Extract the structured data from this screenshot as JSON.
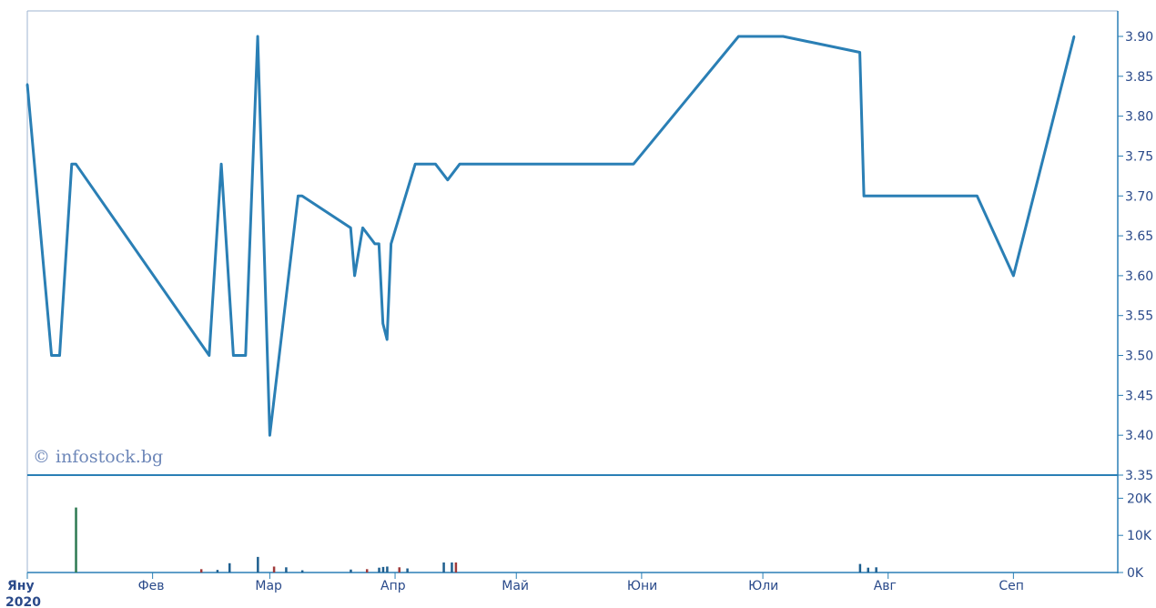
{
  "chart_data": [
    {
      "type": "line",
      "title": "",
      "xlabel": "",
      "ylabel": "",
      "ylim": [
        3.35,
        3.9
      ],
      "y_ticks": [
        "3.35",
        "3.40",
        "3.45",
        "3.50",
        "3.55",
        "3.60",
        "3.65",
        "3.70",
        "3.75",
        "3.80",
        "3.85",
        "3.90"
      ],
      "x_ticks": [
        "Яну",
        "Фев",
        "Мар",
        "Апр",
        "Май",
        "Юни",
        "Юли",
        "Авг",
        "Сеп"
      ],
      "year_label": "2020",
      "watermark": "© infostock.bg",
      "line_color": "#2a7fb5",
      "series": [
        {
          "x": [
            "2020-01-01",
            "2020-01-07",
            "2020-01-09",
            "2020-01-12",
            "2020-01-13",
            "2020-02-15",
            "2020-02-18",
            "2020-02-21",
            "2020-02-24",
            "2020-02-27",
            "2020-03-01",
            "2020-03-08",
            "2020-03-09",
            "2020-03-21",
            "2020-03-22",
            "2020-03-24",
            "2020-03-27",
            "2020-03-28",
            "2020-03-29",
            "2020-03-30",
            "2020-03-31",
            "2020-04-06",
            "2020-04-11",
            "2020-04-14",
            "2020-04-17",
            "2020-05-30",
            "2020-06-25",
            "2020-07-06",
            "2020-07-25",
            "2020-07-26",
            "2020-08-23",
            "2020-09-01",
            "2020-09-16"
          ],
          "y": [
            3.84,
            3.5,
            3.5,
            3.74,
            3.74,
            3.5,
            3.74,
            3.5,
            3.5,
            3.9,
            3.4,
            3.7,
            3.7,
            3.66,
            3.6,
            3.66,
            3.64,
            3.64,
            3.54,
            3.52,
            3.64,
            3.74,
            3.74,
            3.72,
            3.74,
            3.74,
            3.9,
            3.9,
            3.88,
            3.7,
            3.7,
            3.6,
            3.9
          ]
        }
      ]
    },
    {
      "type": "bar",
      "title": "",
      "ylim": [
        0,
        25000
      ],
      "y_ticks": [
        "0K",
        "10K",
        "20K"
      ],
      "bar_color": "#1f5f8f",
      "series": [
        {
          "dates": [
            "2020-01-13",
            "2020-02-13",
            "2020-02-17",
            "2020-02-20",
            "2020-02-27",
            "2020-03-02",
            "2020-03-05",
            "2020-03-09",
            "2020-03-21",
            "2020-03-25",
            "2020-03-28",
            "2020-03-29",
            "2020-03-30",
            "2020-04-02",
            "2020-04-04",
            "2020-04-13",
            "2020-04-15",
            "2020-04-16",
            "2020-07-25",
            "2020-07-27",
            "2020-07-29"
          ],
          "values": [
            17500,
            900,
            700,
            2500,
            4200,
            1600,
            1400,
            600,
            800,
            900,
            1300,
            1500,
            1600,
            1400,
            1100,
            2700,
            2700,
            2700,
            2300,
            1300,
            1400
          ]
        }
      ]
    }
  ]
}
